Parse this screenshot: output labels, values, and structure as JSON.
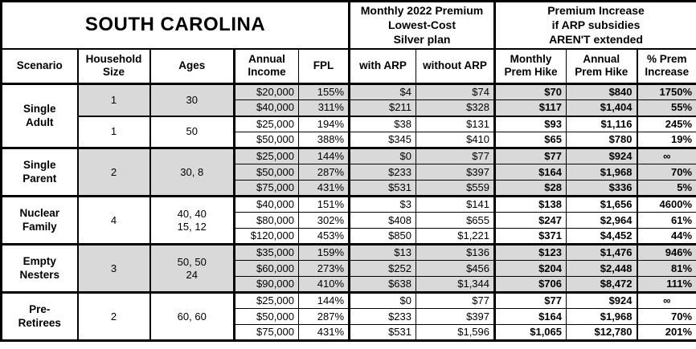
{
  "title": "SOUTH CAROLINA",
  "group_headers": {
    "premium": "Monthly 2022 Premium\nLowest-Cost\nSilver plan",
    "increase": "Premium Increase\nif ARP subsidies\nAREN'T extended"
  },
  "columns": {
    "scenario": "Scenario",
    "household_size": "Household\nSize",
    "ages": "Ages",
    "annual_income": "Annual\nIncome",
    "fpl": "FPL",
    "with_arp": "with ARP",
    "without_arp": "without ARP",
    "monthly_hike": "Monthly\nPrem Hike",
    "annual_hike": "Annual\nPrem Hike",
    "pct_increase": "% Prem\nIncrease"
  },
  "colors": {
    "shaded_row": "#d9d9d9",
    "border": "#000000",
    "background": "#ffffff",
    "text": "#000000"
  },
  "scenarios": [
    {
      "name": "Single\nAdult",
      "subgroups": [
        {
          "household_size": "1",
          "ages": "30",
          "shaded": true,
          "rows": [
            {
              "income": "$20,000",
              "fpl": "155%",
              "with_arp": "$4",
              "without_arp": "$74",
              "monthly_hike": "$70",
              "annual_hike": "$840",
              "pct_increase": "1750%"
            },
            {
              "income": "$40,000",
              "fpl": "311%",
              "with_arp": "$211",
              "without_arp": "$328",
              "monthly_hike": "$117",
              "annual_hike": "$1,404",
              "pct_increase": "55%"
            }
          ]
        },
        {
          "household_size": "1",
          "ages": "50",
          "shaded": false,
          "rows": [
            {
              "income": "$25,000",
              "fpl": "194%",
              "with_arp": "$38",
              "without_arp": "$131",
              "monthly_hike": "$93",
              "annual_hike": "$1,116",
              "pct_increase": "245%"
            },
            {
              "income": "$50,000",
              "fpl": "388%",
              "with_arp": "$345",
              "without_arp": "$410",
              "monthly_hike": "$65",
              "annual_hike": "$780",
              "pct_increase": "19%"
            }
          ]
        }
      ]
    },
    {
      "name": "Single\nParent",
      "subgroups": [
        {
          "household_size": "2",
          "ages": "30, 8",
          "shaded": true,
          "rows": [
            {
              "income": "$25,000",
              "fpl": "144%",
              "with_arp": "$0",
              "without_arp": "$77",
              "monthly_hike": "$77",
              "annual_hike": "$924",
              "pct_increase": "∞"
            },
            {
              "income": "$50,000",
              "fpl": "287%",
              "with_arp": "$233",
              "without_arp": "$397",
              "monthly_hike": "$164",
              "annual_hike": "$1,968",
              "pct_increase": "70%"
            },
            {
              "income": "$75,000",
              "fpl": "431%",
              "with_arp": "$531",
              "without_arp": "$559",
              "monthly_hike": "$28",
              "annual_hike": "$336",
              "pct_increase": "5%"
            }
          ]
        }
      ]
    },
    {
      "name": "Nuclear\nFamily",
      "subgroups": [
        {
          "household_size": "4",
          "ages": "40, 40\n15, 12",
          "shaded": false,
          "rows": [
            {
              "income": "$40,000",
              "fpl": "151%",
              "with_arp": "$3",
              "without_arp": "$141",
              "monthly_hike": "$138",
              "annual_hike": "$1,656",
              "pct_increase": "4600%"
            },
            {
              "income": "$80,000",
              "fpl": "302%",
              "with_arp": "$408",
              "without_arp": "$655",
              "monthly_hike": "$247",
              "annual_hike": "$2,964",
              "pct_increase": "61%"
            },
            {
              "income": "$120,000",
              "fpl": "453%",
              "with_arp": "$850",
              "without_arp": "$1,221",
              "monthly_hike": "$371",
              "annual_hike": "$4,452",
              "pct_increase": "44%"
            }
          ]
        }
      ]
    },
    {
      "name": "Empty\nNesters",
      "subgroups": [
        {
          "household_size": "3",
          "ages": "50, 50\n24",
          "shaded": true,
          "rows": [
            {
              "income": "$35,000",
              "fpl": "159%",
              "with_arp": "$13",
              "without_arp": "$136",
              "monthly_hike": "$123",
              "annual_hike": "$1,476",
              "pct_increase": "946%"
            },
            {
              "income": "$60,000",
              "fpl": "273%",
              "with_arp": "$252",
              "without_arp": "$456",
              "monthly_hike": "$204",
              "annual_hike": "$2,448",
              "pct_increase": "81%"
            },
            {
              "income": "$90,000",
              "fpl": "410%",
              "with_arp": "$638",
              "without_arp": "$1,344",
              "monthly_hike": "$706",
              "annual_hike": "$8,472",
              "pct_increase": "111%"
            }
          ]
        }
      ]
    },
    {
      "name": "Pre-\nRetirees",
      "subgroups": [
        {
          "household_size": "2",
          "ages": "60, 60",
          "shaded": false,
          "rows": [
            {
              "income": "$25,000",
              "fpl": "144%",
              "with_arp": "$0",
              "without_arp": "$77",
              "monthly_hike": "$77",
              "annual_hike": "$924",
              "pct_increase": "∞"
            },
            {
              "income": "$50,000",
              "fpl": "287%",
              "with_arp": "$233",
              "without_arp": "$397",
              "monthly_hike": "$164",
              "annual_hike": "$1,968",
              "pct_increase": "70%"
            },
            {
              "income": "$75,000",
              "fpl": "431%",
              "with_arp": "$531",
              "without_arp": "$1,596",
              "monthly_hike": "$1,065",
              "annual_hike": "$12,780",
              "pct_increase": "201%"
            }
          ]
        }
      ]
    }
  ]
}
